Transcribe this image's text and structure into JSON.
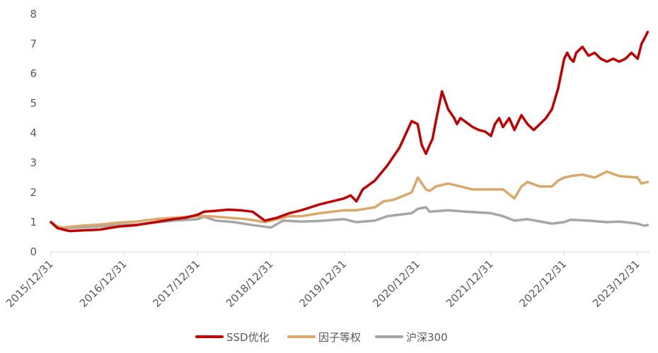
{
  "chart_data": {
    "type": "line",
    "title": "",
    "xlabel": "",
    "ylabel": "",
    "ylim": [
      0,
      8
    ],
    "yticks": [
      0,
      1,
      2,
      3,
      4,
      5,
      6,
      7,
      8
    ],
    "xlim": [
      "2015-12-31",
      "2024-02-29"
    ],
    "xticks": [
      "2015/12/31",
      "2016/12/31",
      "2017/12/31",
      "2018/12/31",
      "2019/12/31",
      "2020/12/31",
      "2021/12/31",
      "2022/12/31",
      "2023/12/31"
    ],
    "grid": false,
    "legend": "bottom",
    "series": [
      {
        "name": "SSD优化",
        "color": "#C00000",
        "x": [
          "2015-12-31",
          "2016-02-01",
          "2016-03-01",
          "2016-04-01",
          "2016-06-01",
          "2016-09-01",
          "2016-12-01",
          "2017-03-01",
          "2017-06-01",
          "2017-09-01",
          "2017-11-01",
          "2017-12-31",
          "2018-02-01",
          "2018-04-01",
          "2018-06-01",
          "2018-08-01",
          "2018-10-01",
          "2018-12-01",
          "2019-02-01",
          "2019-04-01",
          "2019-06-01",
          "2019-09-01",
          "2019-12-31",
          "2020-02-01",
          "2020-03-01",
          "2020-04-01",
          "2020-06-01",
          "2020-08-01",
          "2020-10-01",
          "2020-12-01",
          "2020-12-31",
          "2021-01-20",
          "2021-02-10",
          "2021-03-01",
          "2021-03-15",
          "2021-04-01",
          "2021-05-01",
          "2021-06-01",
          "2021-07-01",
          "2021-07-15",
          "2021-08-01",
          "2021-09-01",
          "2021-10-01",
          "2021-11-01",
          "2021-12-01",
          "2021-12-31",
          "2022-01-20",
          "2022-02-10",
          "2022-03-01",
          "2022-04-01",
          "2022-04-27",
          "2022-06-01",
          "2022-07-01",
          "2022-08-01",
          "2022-09-01",
          "2022-10-01",
          "2022-10-31",
          "2022-12-01",
          "2022-12-31",
          "2023-01-15",
          "2023-01-31",
          "2023-02-15",
          "2023-03-01",
          "2023-04-01",
          "2023-05-01",
          "2023-06-01",
          "2023-07-01",
          "2023-08-01",
          "2023-09-01",
          "2023-10-01",
          "2023-11-01",
          "2023-12-01",
          "2024-01-01",
          "2024-01-20",
          "2024-02-05",
          "2024-02-20"
        ],
        "values": [
          1.0,
          0.8,
          0.75,
          0.7,
          0.72,
          0.75,
          0.85,
          0.9,
          1.0,
          1.1,
          1.15,
          1.25,
          1.35,
          1.38,
          1.42,
          1.4,
          1.35,
          1.05,
          1.15,
          1.3,
          1.4,
          1.6,
          1.8,
          1.9,
          1.7,
          2.1,
          2.4,
          2.9,
          3.5,
          4.4,
          4.3,
          3.6,
          3.3,
          3.6,
          3.8,
          4.4,
          5.4,
          4.8,
          4.5,
          4.3,
          4.5,
          4.35,
          4.2,
          4.1,
          4.05,
          3.9,
          4.3,
          4.5,
          4.2,
          4.5,
          4.1,
          4.6,
          4.3,
          4.1,
          4.3,
          4.5,
          4.8,
          5.5,
          6.5,
          6.7,
          6.5,
          6.4,
          6.7,
          6.9,
          6.6,
          6.7,
          6.5,
          6.4,
          6.5,
          6.4,
          6.5,
          6.7,
          6.5,
          7.0,
          7.2,
          7.4
        ]
      },
      {
        "name": "因子等权",
        "color": "#D9A86A",
        "x": [
          "2015-12-31",
          "2016-02-01",
          "2016-03-01",
          "2016-06-01",
          "2016-09-01",
          "2016-12-01",
          "2017-03-01",
          "2017-06-01",
          "2017-09-01",
          "2017-12-31",
          "2018-03-01",
          "2018-06-01",
          "2018-09-01",
          "2018-12-01",
          "2019-02-01",
          "2019-04-01",
          "2019-06-01",
          "2019-09-01",
          "2019-12-31",
          "2020-03-01",
          "2020-06-01",
          "2020-07-15",
          "2020-09-01",
          "2020-12-01",
          "2021-01-01",
          "2021-02-10",
          "2021-03-01",
          "2021-04-01",
          "2021-06-01",
          "2021-08-01",
          "2021-10-01",
          "2021-12-31",
          "2022-03-01",
          "2022-04-27",
          "2022-06-01",
          "2022-07-01",
          "2022-09-01",
          "2022-10-31",
          "2022-12-01",
          "2022-12-31",
          "2023-02-01",
          "2023-04-01",
          "2023-06-01",
          "2023-08-01",
          "2023-10-01",
          "2023-12-31",
          "2024-01-20",
          "2024-02-20"
        ],
        "values": [
          1.0,
          0.85,
          0.82,
          0.88,
          0.92,
          0.98,
          1.02,
          1.1,
          1.15,
          1.2,
          1.2,
          1.15,
          1.1,
          1.0,
          1.1,
          1.2,
          1.2,
          1.3,
          1.4,
          1.4,
          1.5,
          1.7,
          1.75,
          2.0,
          2.5,
          2.1,
          2.05,
          2.2,
          2.3,
          2.2,
          2.1,
          2.1,
          2.1,
          1.8,
          2.2,
          2.35,
          2.2,
          2.2,
          2.4,
          2.5,
          2.55,
          2.6,
          2.5,
          2.7,
          2.55,
          2.5,
          2.3,
          2.35
        ]
      },
      {
        "name": "沪深300",
        "color": "#A6A6A6",
        "x": [
          "2015-12-31",
          "2016-02-01",
          "2016-03-01",
          "2016-06-01",
          "2016-09-01",
          "2016-12-01",
          "2017-03-01",
          "2017-06-01",
          "2017-09-01",
          "2017-12-31",
          "2018-02-01",
          "2018-04-01",
          "2018-07-01",
          "2018-10-01",
          "2018-12-31",
          "2019-03-01",
          "2019-06-01",
          "2019-09-01",
          "2019-12-31",
          "2020-03-01",
          "2020-06-01",
          "2020-08-01",
          "2020-12-01",
          "2021-01-01",
          "2021-02-10",
          "2021-03-01",
          "2021-06-01",
          "2021-09-01",
          "2021-12-31",
          "2022-03-01",
          "2022-04-27",
          "2022-07-01",
          "2022-10-31",
          "2022-12-31",
          "2023-02-01",
          "2023-05-01",
          "2023-08-01",
          "2023-10-01",
          "2023-12-31",
          "2024-02-01",
          "2024-02-20"
        ],
        "values": [
          1.0,
          0.82,
          0.8,
          0.82,
          0.86,
          0.9,
          0.92,
          0.98,
          1.05,
          1.1,
          1.18,
          1.05,
          1.0,
          0.9,
          0.82,
          1.05,
          1.02,
          1.04,
          1.1,
          1.0,
          1.05,
          1.2,
          1.3,
          1.45,
          1.5,
          1.35,
          1.4,
          1.35,
          1.3,
          1.2,
          1.05,
          1.1,
          0.95,
          1.0,
          1.08,
          1.05,
          1.0,
          1.02,
          0.95,
          0.88,
          0.9
        ]
      }
    ]
  }
}
